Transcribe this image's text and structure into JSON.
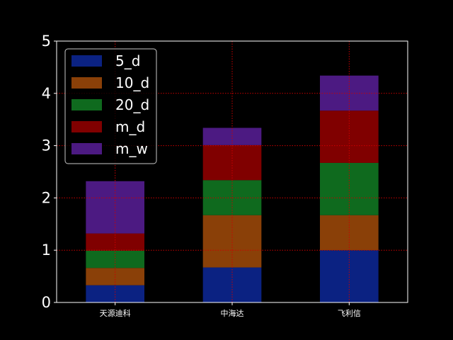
{
  "chart_data": {
    "type": "bar",
    "stacked": true,
    "categories": [
      "天源迪科",
      "中海达",
      "飞利信"
    ],
    "series": [
      {
        "name": "5_d",
        "color": "#0b2282",
        "values": [
          0.33,
          0.67,
          1.0
        ]
      },
      {
        "name": "10_d",
        "color": "#8a4008",
        "values": [
          0.33,
          1.0,
          0.67
        ]
      },
      {
        "name": "20_d",
        "color": "#0f6a1e",
        "values": [
          0.33,
          0.67,
          1.0
        ]
      },
      {
        "name": "m_d",
        "color": "#800000",
        "values": [
          0.33,
          0.67,
          1.0
        ]
      },
      {
        "name": "m_w",
        "color": "#4c1a82",
        "values": [
          1.0,
          0.33,
          0.67
        ]
      }
    ],
    "title": "",
    "xlabel": "",
    "ylabel": "",
    "ylim": [
      0,
      5
    ],
    "yticks": [
      "0",
      "1",
      "2",
      "3",
      "4",
      "5"
    ],
    "grid": true,
    "grid_color": "#cc0000",
    "legend_position": "top-left",
    "background": "#000000",
    "axes_color": "#ffffff"
  }
}
